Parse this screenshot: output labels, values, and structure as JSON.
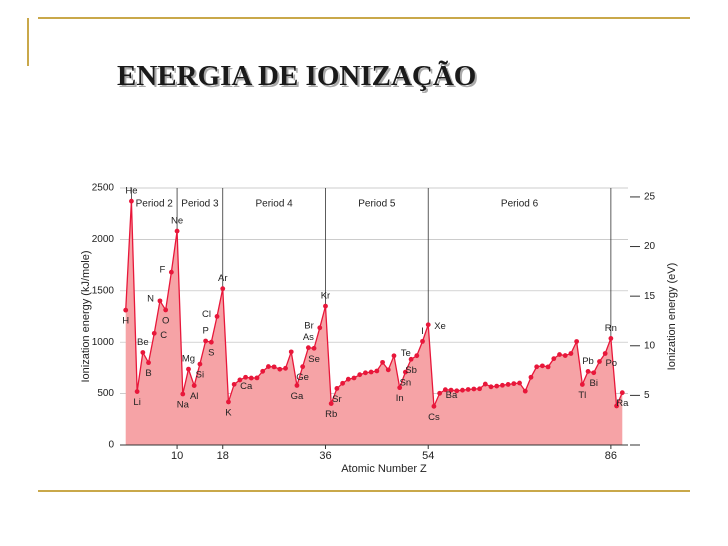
{
  "slide": {
    "title": "ENERGIA DE IONIZAÇÃO"
  },
  "chart_data": {
    "type": "area-line",
    "ylabel": "Ionization energy (kJ/mole)",
    "y2label": "Ionization energy (eV)",
    "xlabel": "Atomic Number Z",
    "xlim": [
      0,
      89
    ],
    "xticks": [
      10,
      18,
      36,
      54,
      86
    ],
    "ylim": [
      0,
      2500
    ],
    "yticks": [
      0,
      500,
      1000,
      1500,
      2000,
      2500
    ],
    "y2lim": [
      0,
      25.9
    ],
    "y2ticks": [
      5,
      10,
      15,
      20,
      25
    ],
    "grid": true,
    "x": [
      1,
      2,
      3,
      4,
      5,
      6,
      7,
      8,
      9,
      10,
      11,
      12,
      13,
      14,
      15,
      16,
      17,
      18,
      19,
      20,
      21,
      22,
      23,
      24,
      25,
      26,
      27,
      28,
      29,
      30,
      31,
      32,
      33,
      34,
      35,
      36,
      37,
      38,
      39,
      40,
      41,
      42,
      43,
      44,
      45,
      46,
      47,
      48,
      49,
      50,
      51,
      52,
      53,
      54,
      55,
      56,
      57,
      58,
      59,
      60,
      61,
      62,
      63,
      64,
      65,
      66,
      67,
      68,
      69,
      70,
      71,
      72,
      73,
      74,
      75,
      76,
      77,
      78,
      79,
      80,
      81,
      82,
      83,
      84,
      85,
      86,
      87,
      88
    ],
    "series": [
      {
        "color": "#e8173a",
        "fill": "#f6a3a6",
        "values": [
          1312,
          2372,
          520,
          900,
          801,
          1086,
          1402,
          1314,
          1681,
          2081,
          496,
          738,
          578,
          787,
          1012,
          1000,
          1251,
          1521,
          419,
          590,
          633,
          659,
          651,
          653,
          717,
          763,
          760,
          737,
          746,
          906,
          579,
          762,
          947,
          941,
          1140,
          1351,
          403,
          550,
          600,
          640,
          652,
          684,
          702,
          710,
          720,
          804,
          731,
          868,
          558,
          709,
          834,
          869,
          1008,
          1170,
          376,
          503,
          538,
          534,
          527,
          533,
          540,
          545,
          547,
          593,
          566,
          573,
          581,
          589,
          597,
          603,
          524,
          659,
          761,
          770,
          760,
          840,
          880,
          870,
          890,
          1007,
          589,
          716,
          703,
          812,
          890,
          1037,
          380,
          509
        ]
      }
    ],
    "periods": [
      {
        "label": "Period 2",
        "from": 2,
        "to": 10
      },
      {
        "label": "Period 3",
        "from": 10,
        "to": 18
      },
      {
        "label": "Period 4",
        "from": 18,
        "to": 36
      },
      {
        "label": "Period 5",
        "from": 36,
        "to": 54
      },
      {
        "label": "Period 6",
        "from": 54,
        "to": 86
      }
    ],
    "element_labels": [
      {
        "z": 1,
        "label": "H",
        "place": "below"
      },
      {
        "z": 2,
        "label": "He",
        "place": "above"
      },
      {
        "z": 3,
        "label": "Li",
        "place": "below"
      },
      {
        "z": 4,
        "label": "Be",
        "place": "above"
      },
      {
        "z": 5,
        "label": "B",
        "place": "below"
      },
      {
        "z": 6,
        "label": "C",
        "place": "right"
      },
      {
        "z": 7,
        "label": "N",
        "place": "left"
      },
      {
        "z": 8,
        "label": "O",
        "place": "below"
      },
      {
        "z": 9,
        "label": "F",
        "place": "left"
      },
      {
        "z": 10,
        "label": "Ne",
        "place": "above"
      },
      {
        "z": 11,
        "label": "Na",
        "place": "below"
      },
      {
        "z": 12,
        "label": "Mg",
        "place": "above"
      },
      {
        "z": 13,
        "label": "Al",
        "place": "below"
      },
      {
        "z": 14,
        "label": "Si",
        "place": "below"
      },
      {
        "z": 15,
        "label": "P",
        "place": "above"
      },
      {
        "z": 16,
        "label": "S",
        "place": "below"
      },
      {
        "z": 17,
        "label": "Cl",
        "place": "left"
      },
      {
        "z": 18,
        "label": "Ar",
        "place": "above"
      },
      {
        "z": 19,
        "label": "K",
        "place": "below"
      },
      {
        "z": 20,
        "label": "Ca",
        "place": "right"
      },
      {
        "z": 31,
        "label": "Ga",
        "place": "below"
      },
      {
        "z": 32,
        "label": "Ge",
        "place": "below"
      },
      {
        "z": 33,
        "label": "As",
        "place": "above"
      },
      {
        "z": 34,
        "label": "Se",
        "place": "below"
      },
      {
        "z": 35,
        "label": "Br",
        "place": "left"
      },
      {
        "z": 36,
        "label": "Kr",
        "place": "above"
      },
      {
        "z": 37,
        "label": "Rb",
        "place": "below"
      },
      {
        "z": 38,
        "label": "Sr",
        "place": "below"
      },
      {
        "z": 49,
        "label": "In",
        "place": "below"
      },
      {
        "z": 50,
        "label": "Sn",
        "place": "below"
      },
      {
        "z": 51,
        "label": "Sb",
        "place": "below"
      },
      {
        "z": 52,
        "label": "Te",
        "place": "left"
      },
      {
        "z": 53,
        "label": "I",
        "place": "above"
      },
      {
        "z": 54,
        "label": "Xe",
        "place": "right"
      },
      {
        "z": 55,
        "label": "Cs",
        "place": "below"
      },
      {
        "z": 56,
        "label": "Ba",
        "place": "right"
      },
      {
        "z": 81,
        "label": "Tl",
        "place": "below"
      },
      {
        "z": 82,
        "label": "Pb",
        "place": "above"
      },
      {
        "z": 83,
        "label": "Bi",
        "place": "below"
      },
      {
        "z": 84,
        "label": "Po",
        "place": "right"
      },
      {
        "z": 86,
        "label": "Rn",
        "place": "above"
      },
      {
        "z": 88,
        "label": "Ra",
        "place": "below"
      }
    ]
  }
}
